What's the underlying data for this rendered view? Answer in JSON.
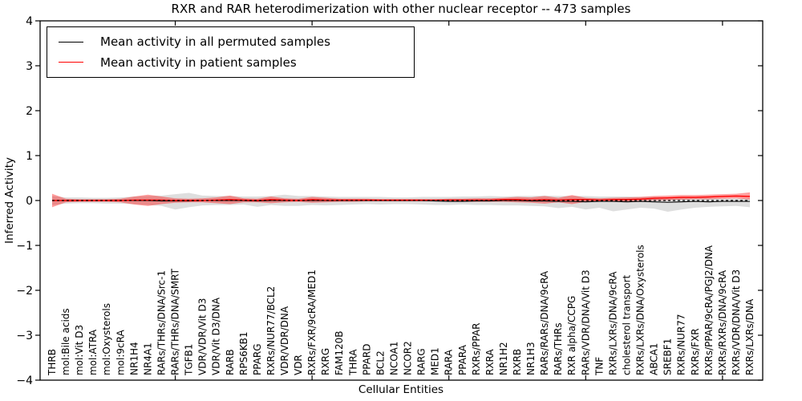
{
  "figure": {
    "title": "RXR and RAR heterodimerization with other nuclear receptor -- 473 samples"
  },
  "legend": {
    "items": [
      {
        "label": "Mean activity in all permuted samples",
        "color": "#000000"
      },
      {
        "label": "Mean activity in patient samples",
        "color": "#ff0000"
      }
    ]
  },
  "colors": {
    "permuted_line": "#000000",
    "patient_line": "#ff0000",
    "permuted_band": "rgba(125,125,125,0.25)",
    "patient_band": "rgba(255,0,0,0.38)",
    "axis": "#000000"
  },
  "chart_data": {
    "type": "area",
    "title": "RXR and RAR heterodimerization with other nuclear receptor -- 473 samples",
    "xlabel": "Cellular Entities",
    "ylabel": "Inferred Activity",
    "ylim": [
      -4,
      4
    ],
    "yticks": [
      4,
      3,
      2,
      1,
      0,
      -1,
      -2,
      -3,
      -4
    ],
    "xticks_major_positions": [
      10,
      20,
      30,
      40,
      50
    ],
    "grid": false,
    "legend_position": "upper left",
    "zero_line": {
      "y": 0,
      "style": "dashed",
      "color": "#000000"
    },
    "categories": [
      "THRB",
      "mol:Bile acids",
      "mol:Vit D3",
      "mol:ATRA",
      "mol:Oxysterols",
      "mol:9cRA",
      "NR1H4",
      "NR4A1",
      "RARs/THRs/DNA/Src-1",
      "RARs/THRs/DNA/SMRT",
      "TGFB1",
      "VDR/VDR/Vit D3",
      "VDR/Vit D3/DNA",
      "RARB",
      "RPS6KB1",
      "PPARG",
      "RXRs/NUR77/BCL2",
      "VDR/VDR/DNA",
      "VDR",
      "RXRs/FXR/9cRA/MED1",
      "RXRG",
      "FAM120B",
      "THRA",
      "PPARD",
      "BCL2",
      "NCOA1",
      "NCOR2",
      "RARG",
      "MED1",
      "RARA",
      "PPARA",
      "RXRs/PPAR",
      "RXRA",
      "NR1H2",
      "RXRB",
      "NR1H3",
      "RARs/RARs/DNA/9cRA",
      "RARs/THRs",
      "RXR alpha/CCPG",
      "RARs/VDR/DNA/Vit D3",
      "TNF",
      "RXRs/LXRs/DNA/9cRA",
      "cholesterol transport",
      "RXRs/LXRs/DNA/Oxysterols",
      "ABCA1",
      "SREBF1",
      "RXRs/NUR77",
      "RXRs/FXR",
      "RXRs/PPAR/9cRA/PGJ2/DNA",
      "RXRs/RXRs/DNA/9cRA",
      "RXRs/VDR/DNA/Vit D3",
      "RXRs/LXRs/DNA"
    ],
    "series": [
      {
        "name": "Mean activity in all permuted samples",
        "kind": "line",
        "color": "#000000",
        "values": [
          0,
          0,
          0,
          0,
          0,
          0,
          0,
          0,
          -0.01,
          -0.01,
          -0.01,
          0,
          0,
          0,
          0,
          -0.01,
          0,
          0,
          0,
          0,
          0,
          0,
          0,
          0,
          0,
          0,
          0,
          0,
          -0.01,
          -0.02,
          -0.02,
          -0.01,
          -0.01,
          0,
          0,
          -0.01,
          -0.01,
          -0.02,
          -0.02,
          -0.03,
          -0.02,
          -0.02,
          -0.03,
          -0.02,
          -0.03,
          -0.04,
          -0.03,
          -0.02,
          -0.03,
          -0.02,
          -0.02,
          -0.02
        ]
      },
      {
        "name": "Mean activity in patient samples",
        "kind": "line",
        "color": "#ff0000",
        "values": [
          0,
          0,
          0,
          0,
          0,
          0,
          0.01,
          0.01,
          0.01,
          0,
          0,
          0,
          0.01,
          0.02,
          0.01,
          0,
          0.02,
          0.01,
          0,
          0.02,
          0.01,
          0.01,
          0.01,
          0.01,
          0.01,
          0.01,
          0.01,
          0.01,
          0.01,
          0.01,
          0.01,
          0.01,
          0.01,
          0.02,
          0.02,
          0.01,
          0.02,
          0.01,
          0.02,
          0.02,
          0.01,
          0.02,
          0.02,
          0.03,
          0.05,
          0.06,
          0.07,
          0.07,
          0.08,
          0.09,
          0.1,
          0.09
        ]
      },
      {
        "name": "Permuted samples activity range",
        "kind": "band",
        "color": "rgba(125,125,125,0.25)",
        "upper": [
          0.1,
          0.07,
          0.07,
          0.06,
          0.06,
          0.07,
          0.09,
          0.1,
          0.11,
          0.14,
          0.17,
          0.11,
          0.1,
          0.1,
          0.09,
          0.09,
          0.1,
          0.13,
          0.1,
          0.1,
          0.09,
          0.08,
          0.08,
          0.08,
          0.08,
          0.07,
          0.07,
          0.08,
          0.08,
          0.08,
          0.09,
          0.09,
          0.1,
          0.09,
          0.1,
          0.1,
          0.11,
          0.1,
          0.1,
          0.1,
          0.09,
          0.09,
          0.09,
          0.08,
          0.08,
          0.07,
          0.07,
          0.06,
          0.06,
          0.05,
          0.05,
          0.05
        ],
        "lower": [
          -0.1,
          -0.07,
          -0.06,
          -0.06,
          -0.07,
          -0.07,
          -0.08,
          -0.1,
          -0.12,
          -0.2,
          -0.15,
          -0.11,
          -0.1,
          -0.1,
          -0.09,
          -0.14,
          -0.1,
          -0.12,
          -0.12,
          -0.1,
          -0.11,
          -0.1,
          -0.09,
          -0.08,
          -0.09,
          -0.08,
          -0.08,
          -0.09,
          -0.1,
          -0.1,
          -0.09,
          -0.1,
          -0.1,
          -0.11,
          -0.11,
          -0.12,
          -0.13,
          -0.17,
          -0.14,
          -0.2,
          -0.16,
          -0.24,
          -0.2,
          -0.16,
          -0.18,
          -0.25,
          -0.2,
          -0.16,
          -0.14,
          -0.13,
          -0.12,
          -0.15
        ]
      },
      {
        "name": "Patient samples activity range",
        "kind": "band",
        "color": "rgba(255,0,0,0.38)",
        "upper": [
          0.15,
          0.04,
          0.03,
          0.03,
          0.03,
          0.04,
          0.09,
          0.13,
          0.09,
          0.05,
          0.04,
          0.05,
          0.07,
          0.11,
          0.05,
          0.04,
          0.09,
          0.05,
          0.04,
          0.08,
          0.06,
          0.04,
          0.04,
          0.04,
          0.03,
          0.03,
          0.03,
          0.03,
          0.03,
          0.04,
          0.04,
          0.05,
          0.05,
          0.06,
          0.08,
          0.07,
          0.1,
          0.06,
          0.12,
          0.06,
          0.05,
          0.06,
          0.07,
          0.08,
          0.1,
          0.11,
          0.12,
          0.12,
          0.13,
          0.14,
          0.15,
          0.18
        ],
        "lower": [
          -0.15,
          -0.04,
          -0.03,
          -0.03,
          -0.03,
          -0.04,
          -0.09,
          -0.12,
          -0.08,
          -0.05,
          -0.04,
          -0.04,
          -0.06,
          -0.08,
          -0.04,
          -0.04,
          -0.06,
          -0.04,
          -0.03,
          -0.05,
          -0.04,
          -0.03,
          -0.03,
          -0.02,
          -0.02,
          -0.02,
          -0.02,
          -0.02,
          -0.02,
          -0.02,
          -0.03,
          -0.03,
          -0.03,
          -0.03,
          -0.04,
          -0.05,
          -0.07,
          -0.04,
          -0.08,
          -0.03,
          -0.02,
          -0.03,
          -0.02,
          -0.01,
          0,
          0.01,
          0.02,
          0.03,
          0.03,
          0.04,
          0.05,
          0.02
        ]
      }
    ]
  }
}
